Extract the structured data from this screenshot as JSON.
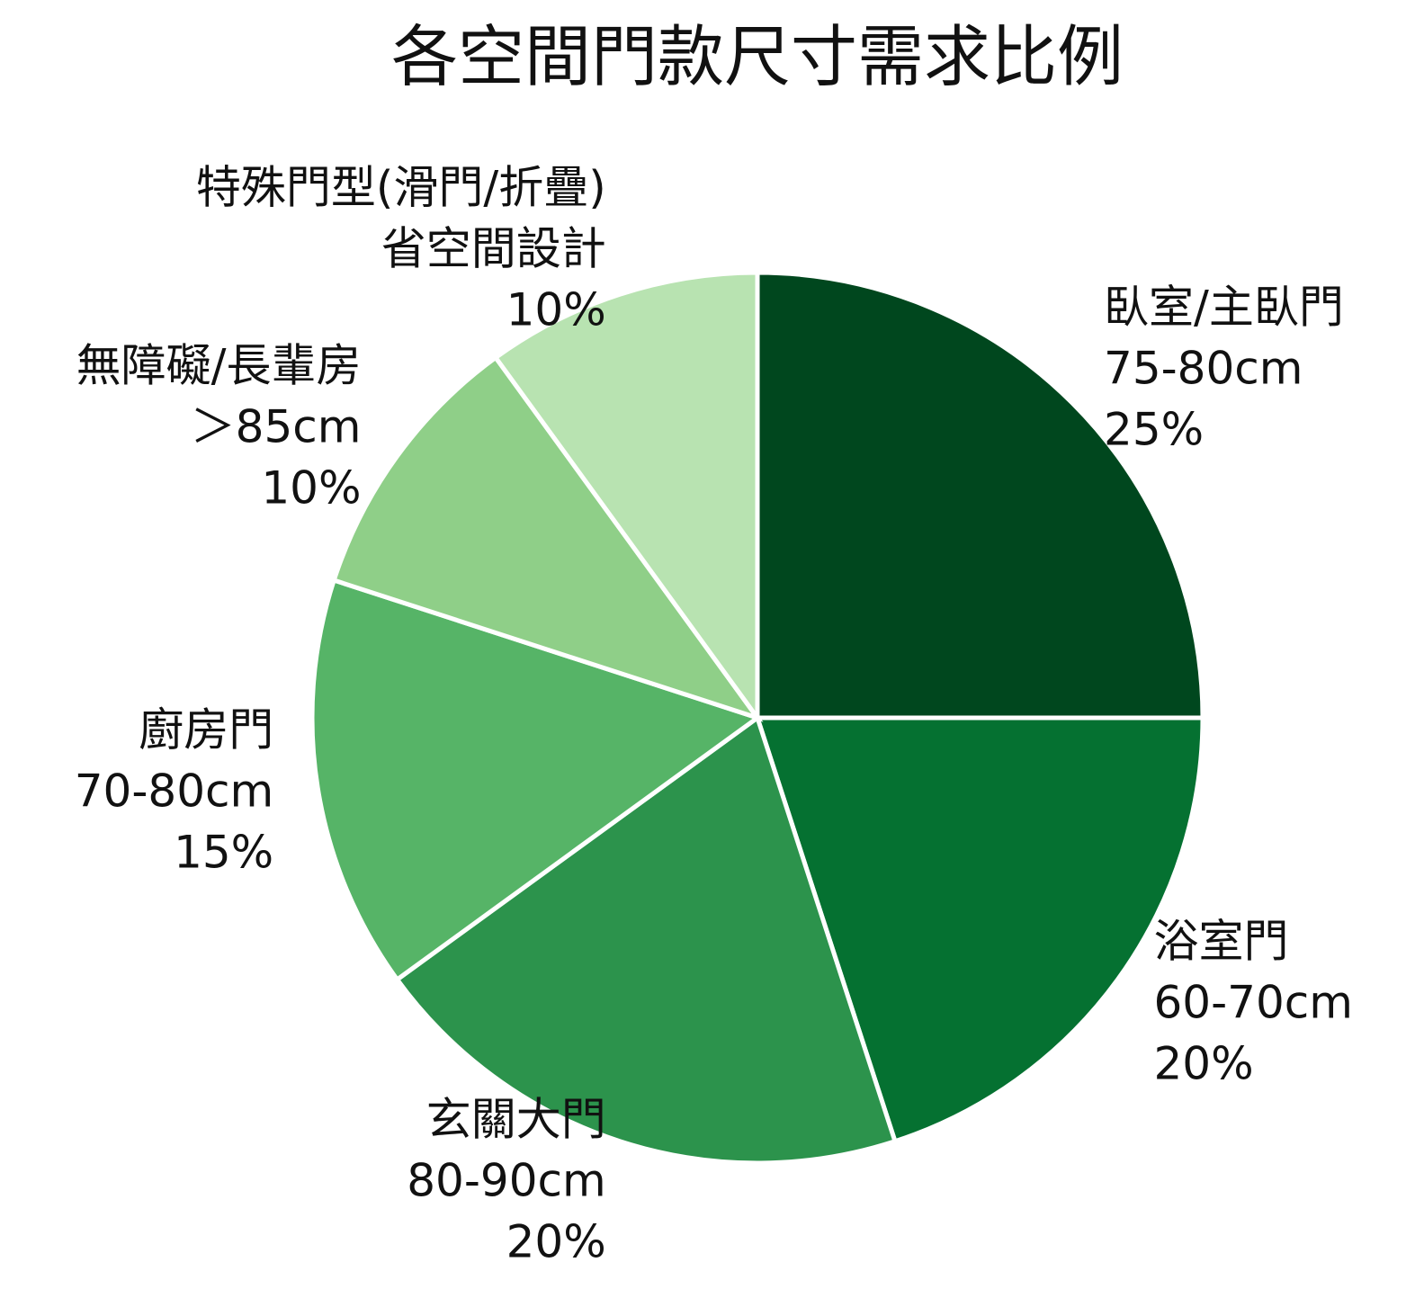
{
  "chart_data": {
    "type": "pie",
    "title": "各空間門款尺寸需求比例",
    "categories": [
      "臥室/主臥門",
      "浴室門",
      "玄關大門",
      "廚房門",
      "無障礙/長輩房",
      "特殊門型(滑門/折疊)"
    ],
    "sublabels": [
      "75-80cm",
      "60-70cm",
      "80-90cm",
      "70-80cm",
      "＞85cm",
      "省空間設計"
    ],
    "values": [
      25,
      20,
      20,
      15,
      10,
      10
    ],
    "value_labels": [
      "25%",
      "20%",
      "20%",
      "15%",
      "10%",
      "10%"
    ],
    "colors": [
      "#00471e",
      "#057131",
      "#2c934c",
      "#56b467",
      "#8fcf88",
      "#b8e3b1"
    ],
    "start_angle": "top",
    "direction": "clockwise"
  }
}
